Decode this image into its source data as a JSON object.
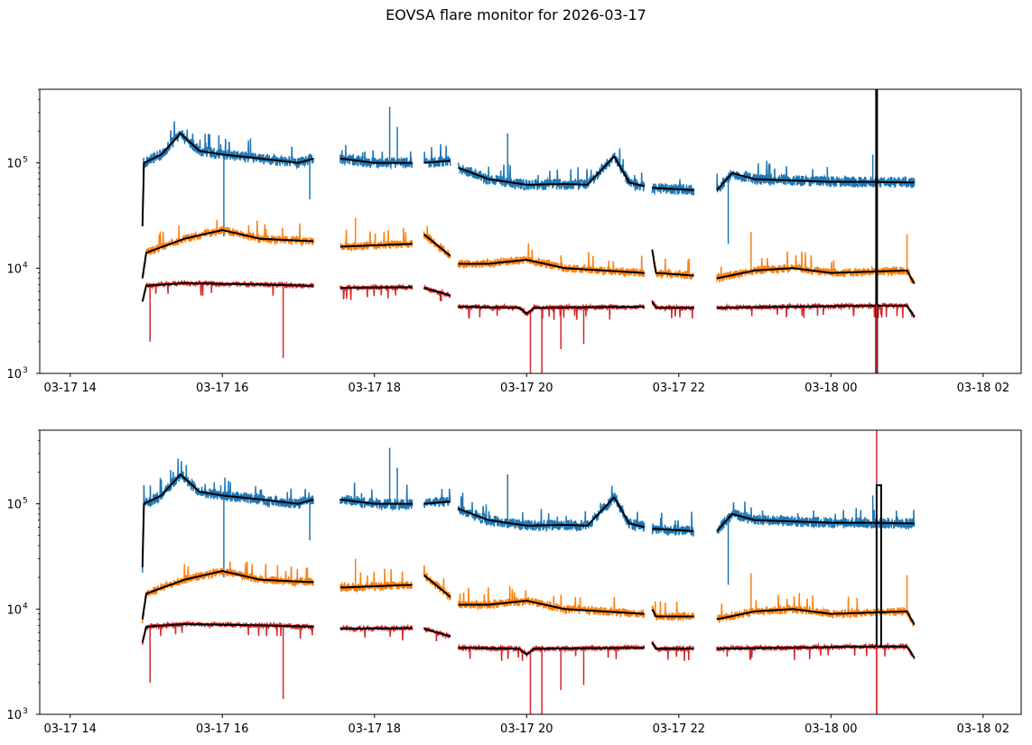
{
  "title": "EOVSA flare monitor for 2026-03-17",
  "colors": {
    "band1": "#1f77b4",
    "band2": "#ff7f0e",
    "band3": "#d62728",
    "smooth": "#000000",
    "axis": "#000000"
  },
  "chart_data": [
    {
      "type": "line",
      "panel": "top",
      "yscale": "log",
      "ylim": [
        1000,
        500000
      ],
      "yticks": [
        {
          "base": "10",
          "exp": "3",
          "value": 1000
        },
        {
          "base": "10",
          "exp": "4",
          "value": 10000
        },
        {
          "base": "10",
          "exp": "5",
          "value": 100000
        }
      ],
      "xlim_hours": [
        13.6,
        26.5
      ],
      "xticks": [
        {
          "label": "03-17 14",
          "hour": 14
        },
        {
          "label": "03-17 16",
          "hour": 16
        },
        {
          "label": "03-17 18",
          "hour": 18
        },
        {
          "label": "03-17 20",
          "hour": 20
        },
        {
          "label": "03-17 22",
          "hour": 22
        },
        {
          "label": "03-18 00",
          "hour": 24
        },
        {
          "label": "03-18 02",
          "hour": 26
        }
      ],
      "segments_hours": [
        [
          14.95,
          17.2
        ],
        [
          17.55,
          18.5
        ],
        [
          18.65,
          19.0
        ],
        [
          19.1,
          21.55
        ],
        [
          21.65,
          22.2
        ],
        [
          22.5,
          25.1
        ]
      ],
      "series": [
        {
          "name": "band1",
          "color": "#1f77b4",
          "points": [
            [
              14.95,
              25000
            ],
            [
              14.97,
              100000
            ],
            [
              15.2,
              120000
            ],
            [
              15.45,
              190000
            ],
            [
              15.7,
              130000
            ],
            [
              16.0,
              120000
            ],
            [
              16.5,
              110000
            ],
            [
              17.0,
              100000
            ],
            [
              17.2,
              110000
            ],
            [
              17.55,
              110000
            ],
            [
              18.0,
              100000
            ],
            [
              18.5,
              100000
            ],
            [
              18.65,
              100000
            ],
            [
              19.0,
              105000
            ],
            [
              19.1,
              90000
            ],
            [
              19.5,
              70000
            ],
            [
              20.0,
              62000
            ],
            [
              20.5,
              63000
            ],
            [
              20.8,
              62000
            ],
            [
              21.15,
              115000
            ],
            [
              21.35,
              65000
            ],
            [
              21.55,
              60000
            ],
            [
              21.65,
              58000
            ],
            [
              22.2,
              55000
            ],
            [
              22.5,
              55000
            ],
            [
              22.7,
              80000
            ],
            [
              23.0,
              70000
            ],
            [
              24.0,
              66000
            ],
            [
              24.5,
              66000
            ],
            [
              25.1,
              65000
            ]
          ],
          "spikes": [
            [
              15.98,
              150000
            ],
            [
              16.02,
              20000
            ],
            [
              17.15,
              45000
            ],
            [
              18.2,
              340000
            ],
            [
              18.3,
              220000
            ],
            [
              19.75,
              190000
            ],
            [
              21.95,
              50000
            ],
            [
              22.65,
              17000
            ],
            [
              24.55,
              120000
            ]
          ]
        },
        {
          "name": "band2",
          "color": "#ff7f0e",
          "points": [
            [
              14.95,
              8000
            ],
            [
              15.0,
              14000
            ],
            [
              15.5,
              19000
            ],
            [
              16.0,
              23000
            ],
            [
              16.5,
              19000
            ],
            [
              17.2,
              18000
            ],
            [
              17.55,
              16000
            ],
            [
              18.5,
              17000
            ],
            [
              18.65,
              21000
            ],
            [
              19.0,
              13000
            ],
            [
              19.1,
              11000
            ],
            [
              19.5,
              11000
            ],
            [
              20.0,
              12000
            ],
            [
              20.5,
              10000
            ],
            [
              21.55,
              9000
            ],
            [
              21.65,
              15000
            ],
            [
              21.7,
              9000
            ],
            [
              22.2,
              8500
            ],
            [
              22.5,
              8000
            ],
            [
              23.0,
              9500
            ],
            [
              23.5,
              10000
            ],
            [
              24.0,
              9000
            ],
            [
              25.0,
              9500
            ],
            [
              25.1,
              7000
            ]
          ],
          "spikes": [
            [
              17.75,
              30000
            ],
            [
              16.7,
              20000
            ],
            [
              24.6,
              22000
            ],
            [
              25.0,
              21000
            ],
            [
              22.95,
              22000
            ]
          ]
        },
        {
          "name": "band3",
          "color": "#d62728",
          "points": [
            [
              14.95,
              4800
            ],
            [
              15.0,
              6800
            ],
            [
              15.5,
              7200
            ],
            [
              16.5,
              7000
            ],
            [
              17.2,
              6800
            ],
            [
              17.55,
              6500
            ],
            [
              18.5,
              6600
            ],
            [
              18.65,
              6500
            ],
            [
              19.0,
              5500
            ],
            [
              19.1,
              4300
            ],
            [
              19.9,
              4200
            ],
            [
              20.0,
              3700
            ],
            [
              20.1,
              4200
            ],
            [
              21.55,
              4300
            ],
            [
              21.65,
              4800
            ],
            [
              21.7,
              4200
            ],
            [
              22.2,
              4200
            ],
            [
              22.5,
              4200
            ],
            [
              23.5,
              4300
            ],
            [
              24.5,
              4400
            ],
            [
              25.0,
              4400
            ],
            [
              25.1,
              3400
            ]
          ],
          "spikes": [
            [
              15.05,
              2000
            ],
            [
              16.8,
              1400
            ],
            [
              20.05,
              1000
            ],
            [
              20.2,
              1000
            ],
            [
              20.45,
              1700
            ],
            [
              20.75,
              1900
            ],
            [
              24.6,
              1000
            ]
          ]
        }
      ],
      "vline_hour": 24.6,
      "vline_color": "#000000"
    },
    {
      "type": "line",
      "panel": "bottom",
      "yscale": "log",
      "ylim": [
        1000,
        500000
      ],
      "yticks": [
        {
          "base": "10",
          "exp": "3",
          "value": 1000
        },
        {
          "base": "10",
          "exp": "4",
          "value": 10000
        },
        {
          "base": "10",
          "exp": "5",
          "value": 100000
        }
      ],
      "xlim_hours": [
        13.6,
        26.5
      ],
      "xticks": [
        {
          "label": "03-17 14",
          "hour": 14
        },
        {
          "label": "03-17 16",
          "hour": 16
        },
        {
          "label": "03-17 18",
          "hour": 18
        },
        {
          "label": "03-17 20",
          "hour": 20
        },
        {
          "label": "03-17 22",
          "hour": 22
        },
        {
          "label": "03-18 00",
          "hour": 24
        },
        {
          "label": "03-18 02",
          "hour": 26
        }
      ],
      "segments_hours": [
        [
          14.95,
          17.2
        ],
        [
          17.55,
          18.5
        ],
        [
          18.65,
          19.0
        ],
        [
          19.1,
          21.55
        ],
        [
          21.65,
          22.2
        ],
        [
          22.5,
          25.1
        ]
      ],
      "series": [
        {
          "name": "band1",
          "color": "#1f77b4",
          "points": [
            [
              14.95,
              25000
            ],
            [
              14.97,
              100000
            ],
            [
              15.2,
              120000
            ],
            [
              15.45,
              190000
            ],
            [
              15.7,
              130000
            ],
            [
              16.0,
              120000
            ],
            [
              16.5,
              110000
            ],
            [
              17.0,
              100000
            ],
            [
              17.2,
              110000
            ],
            [
              17.55,
              110000
            ],
            [
              18.0,
              100000
            ],
            [
              18.5,
              100000
            ],
            [
              18.65,
              100000
            ],
            [
              19.0,
              105000
            ],
            [
              19.1,
              90000
            ],
            [
              19.5,
              70000
            ],
            [
              20.0,
              62000
            ],
            [
              20.5,
              63000
            ],
            [
              20.8,
              62000
            ],
            [
              21.15,
              115000
            ],
            [
              21.35,
              65000
            ],
            [
              21.55,
              60000
            ],
            [
              21.65,
              58000
            ],
            [
              22.2,
              55000
            ],
            [
              22.5,
              55000
            ],
            [
              22.7,
              80000
            ],
            [
              23.0,
              70000
            ],
            [
              24.0,
              66000
            ],
            [
              24.5,
              66000
            ],
            [
              25.1,
              65000
            ]
          ],
          "spikes": [
            [
              15.98,
              150000
            ],
            [
              16.02,
              20000
            ],
            [
              17.15,
              45000
            ],
            [
              18.2,
              340000
            ],
            [
              18.3,
              220000
            ],
            [
              19.75,
              190000
            ],
            [
              21.95,
              50000
            ],
            [
              22.65,
              17000
            ],
            [
              24.55,
              120000
            ]
          ]
        },
        {
          "name": "band2",
          "color": "#ff7f0e",
          "points": [
            [
              14.95,
              8000
            ],
            [
              15.0,
              14000
            ],
            [
              15.5,
              19000
            ],
            [
              16.0,
              23000
            ],
            [
              16.5,
              19000
            ],
            [
              17.2,
              18000
            ],
            [
              17.55,
              16000
            ],
            [
              18.5,
              17000
            ],
            [
              18.65,
              21000
            ],
            [
              19.0,
              13000
            ],
            [
              19.1,
              11000
            ],
            [
              19.5,
              11000
            ],
            [
              20.0,
              12000
            ],
            [
              20.5,
              10000
            ],
            [
              21.55,
              9000
            ],
            [
              21.65,
              10000
            ],
            [
              21.7,
              8500
            ],
            [
              22.2,
              8500
            ],
            [
              22.5,
              8000
            ],
            [
              23.0,
              9500
            ],
            [
              23.5,
              10000
            ],
            [
              24.0,
              9000
            ],
            [
              25.0,
              9500
            ],
            [
              25.1,
              7000
            ]
          ],
          "spikes": [
            [
              17.75,
              30000
            ],
            [
              16.7,
              20000
            ],
            [
              24.6,
              22000
            ],
            [
              25.0,
              21000
            ],
            [
              22.95,
              22000
            ]
          ]
        },
        {
          "name": "band3",
          "color": "#d62728",
          "points": [
            [
              14.95,
              4800
            ],
            [
              15.0,
              6800
            ],
            [
              15.5,
              7200
            ],
            [
              16.5,
              7000
            ],
            [
              17.2,
              6800
            ],
            [
              17.55,
              6500
            ],
            [
              18.5,
              6600
            ],
            [
              18.65,
              6500
            ],
            [
              19.0,
              5500
            ],
            [
              19.1,
              4300
            ],
            [
              19.9,
              4200
            ],
            [
              20.0,
              3700
            ],
            [
              20.1,
              4200
            ],
            [
              21.55,
              4300
            ],
            [
              21.65,
              4800
            ],
            [
              21.7,
              4200
            ],
            [
              22.2,
              4200
            ],
            [
              22.5,
              4200
            ],
            [
              23.5,
              4300
            ],
            [
              24.5,
              4400
            ],
            [
              25.0,
              4400
            ],
            [
              25.1,
              3400
            ]
          ],
          "spikes": [
            [
              15.05,
              2000
            ],
            [
              16.8,
              1400
            ],
            [
              20.05,
              1000
            ],
            [
              20.2,
              1000
            ],
            [
              20.45,
              1700
            ],
            [
              20.75,
              1900
            ],
            [
              24.6,
              1000
            ]
          ]
        }
      ],
      "vline_hour": 24.6,
      "vline_color": "#d62728",
      "step_marker": {
        "hours": [
          24.6,
          24.66
        ],
        "value": 150000
      }
    }
  ]
}
